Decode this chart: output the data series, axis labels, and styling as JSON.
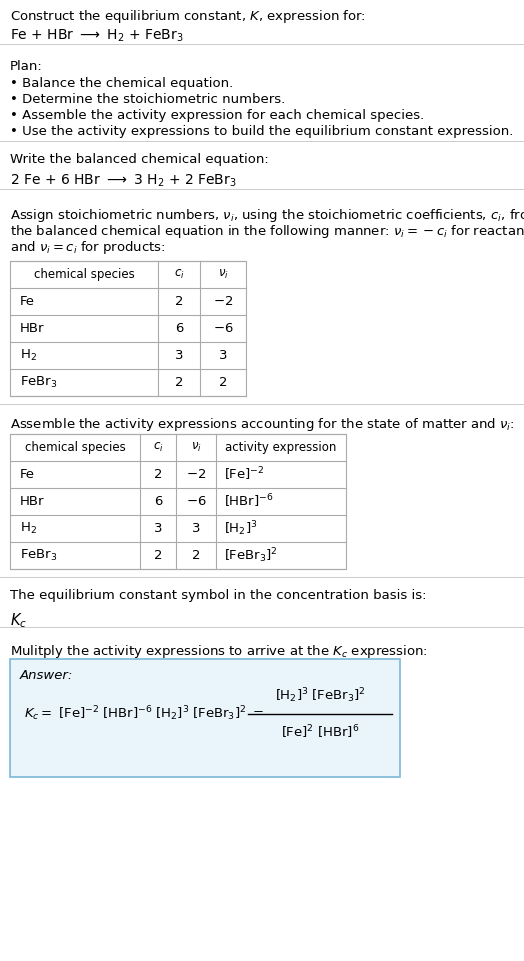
{
  "bg_color": "#ffffff",
  "text_color": "#000000",
  "table_border": "#aaaaaa",
  "answer_box_bg": "#eaf4fb",
  "answer_box_border": "#7ab8d9",
  "section1_title": "Construct the equilibrium constant, $K$, expression for:",
  "section1_reaction": "Fe + HBr $\\longrightarrow$ H$_2$ + FeBr$_3$",
  "section2_title": "Plan:",
  "section2_bullets": [
    "• Balance the chemical equation.",
    "• Determine the stoichiometric numbers.",
    "• Assemble the activity expression for each chemical species.",
    "• Use the activity expressions to build the equilibrium constant expression."
  ],
  "section3_title": "Write the balanced chemical equation:",
  "section3_eq": "2 Fe + 6 HBr $\\longrightarrow$ 3 H$_2$ + 2 FeBr$_3$",
  "section4_intro": "Assign stoichiometric numbers, $\\nu_i$, using the stoichiometric coefficients, $c_i$, from the balanced chemical equation in the following manner: $\\nu_i = -c_i$ for reactants and $\\nu_i = c_i$ for products:",
  "table1_headers": [
    "chemical species",
    "$c_i$",
    "$\\nu_i$"
  ],
  "table1_rows": [
    [
      "Fe",
      "2",
      "$-2$"
    ],
    [
      "HBr",
      "6",
      "$-6$"
    ],
    [
      "H$_2$",
      "3",
      "3"
    ],
    [
      "FeBr$_3$",
      "2",
      "2"
    ]
  ],
  "section5_title": "Assemble the activity expressions accounting for the state of matter and $\\nu_i$:",
  "table2_headers": [
    "chemical species",
    "$c_i$",
    "$\\nu_i$",
    "activity expression"
  ],
  "table2_rows": [
    [
      "Fe",
      "2",
      "$-2$",
      "[Fe]$^{-2}$"
    ],
    [
      "HBr",
      "6",
      "$-6$",
      "[HBr]$^{-6}$"
    ],
    [
      "H$_2$",
      "3",
      "3",
      "[H$_2$]$^3$"
    ],
    [
      "FeBr$_3$",
      "2",
      "2",
      "[FeBr$_3$]$^2$"
    ]
  ],
  "section6_title": "The equilibrium constant symbol in the concentration basis is:",
  "section6_symbol": "$K_c$",
  "section7_title": "Mulitply the activity expressions to arrive at the $K_c$ expression:",
  "answer_label": "Answer:",
  "font_size": 9.5
}
